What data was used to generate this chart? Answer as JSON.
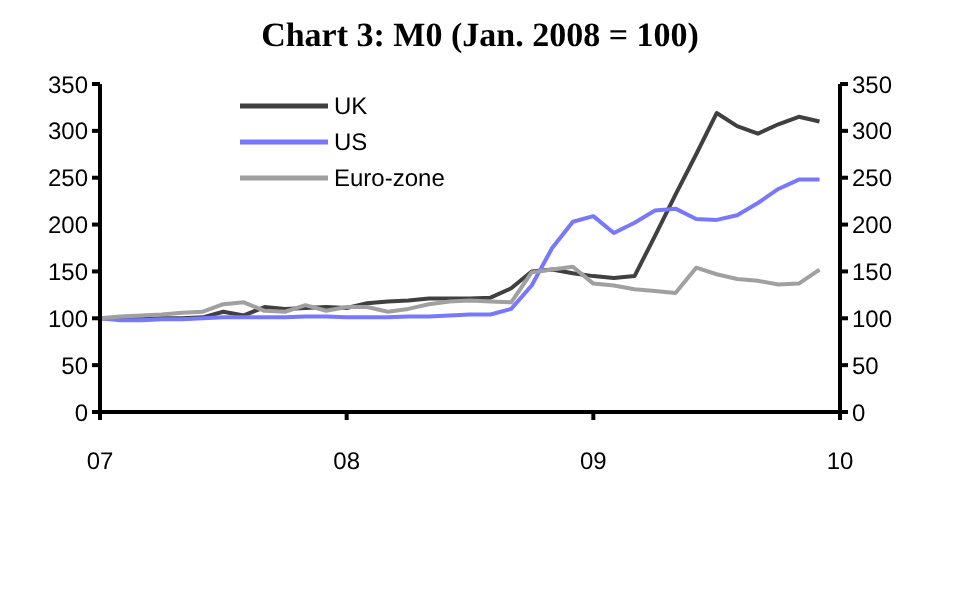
{
  "chart_data": {
    "type": "line",
    "title": "Chart 3: M0 (Jan. 2008 = 100)",
    "x": [
      2007.0,
      2007.083,
      2007.167,
      2007.25,
      2007.333,
      2007.417,
      2007.5,
      2007.583,
      2007.667,
      2007.75,
      2007.833,
      2007.917,
      2008.0,
      2008.083,
      2008.167,
      2008.25,
      2008.333,
      2008.417,
      2008.5,
      2008.583,
      2008.667,
      2008.75,
      2008.833,
      2008.917,
      2009.0,
      2009.083,
      2009.167,
      2009.25,
      2009.333,
      2009.417,
      2009.5,
      2009.583,
      2009.667,
      2009.75,
      2009.833,
      2009.917
    ],
    "series": [
      {
        "name": "UK",
        "color": "#404040",
        "values": [
          100,
          99,
          99,
          100,
          100,
          101,
          107,
          103,
          112,
          110,
          111,
          112,
          111,
          116,
          118,
          119,
          121,
          121,
          121,
          122,
          132,
          150,
          152,
          148,
          145,
          143,
          145,
          188,
          232,
          275,
          319,
          305,
          297,
          307,
          315,
          310
        ]
      },
      {
        "name": "US",
        "color": "#7878ff",
        "values": [
          100,
          98,
          98,
          99,
          99,
          100,
          101,
          101,
          101,
          101,
          102,
          102,
          101,
          101,
          101,
          102,
          102,
          103,
          104,
          104,
          110,
          135,
          175,
          203,
          209,
          191,
          202,
          215,
          217,
          206,
          205,
          210,
          223,
          238,
          248,
          248
        ]
      },
      {
        "name": "Euro-zone",
        "color": "#a0a0a0",
        "values": [
          100,
          102,
          103,
          104,
          106,
          107,
          115,
          117,
          108,
          107,
          114,
          108,
          112,
          112,
          107,
          110,
          115,
          118,
          119,
          118,
          117,
          149,
          152,
          155,
          137,
          135,
          131,
          129,
          127,
          154,
          147,
          142,
          140,
          136,
          137,
          152
        ]
      }
    ],
    "xlim": [
      2007,
      2010
    ],
    "xticks": [
      {
        "value": 2007,
        "label": "07"
      },
      {
        "value": 2008,
        "label": "08"
      },
      {
        "value": 2009,
        "label": "09"
      },
      {
        "value": 2010,
        "label": "10"
      }
    ],
    "ylim": [
      0,
      350
    ],
    "yticks": [
      0,
      50,
      100,
      150,
      200,
      250,
      300,
      350
    ],
    "y2lim": [
      0,
      350
    ],
    "y2ticks": [
      0,
      50,
      100,
      150,
      200,
      250,
      300,
      350
    ],
    "grid": false,
    "legend": "top left",
    "marker": "none",
    "line_style": "solid"
  }
}
